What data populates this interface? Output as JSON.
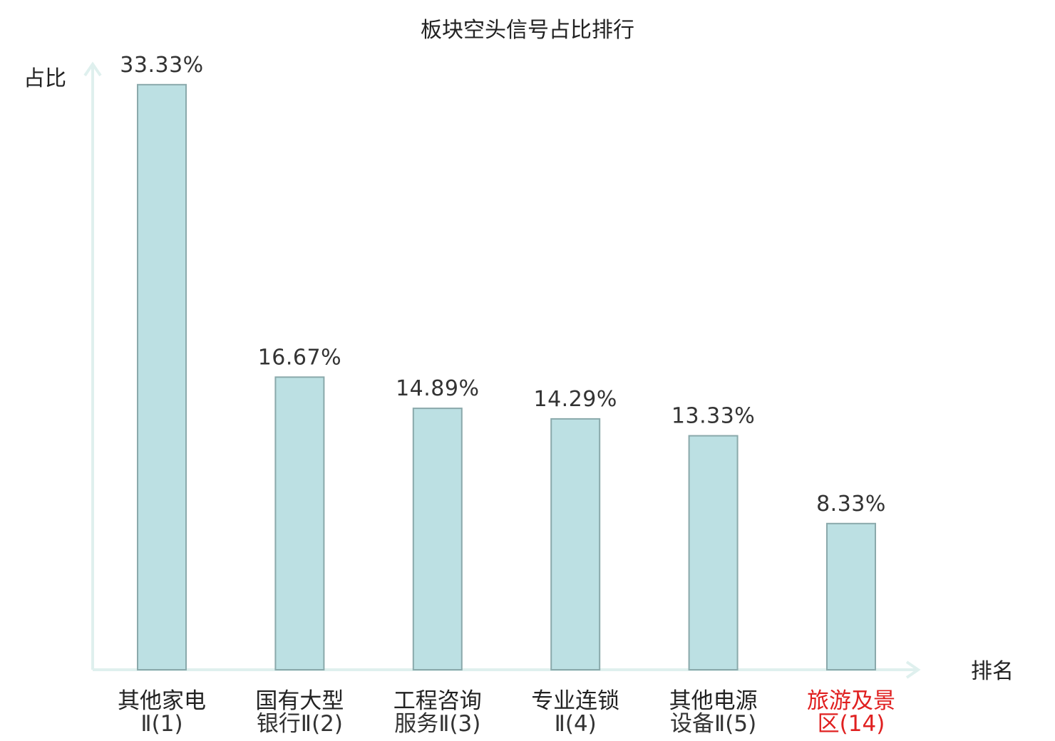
{
  "chart_data": {
    "type": "bar",
    "title": "板块空头信号占比排行",
    "ylabel": "占比",
    "xlabel": "排名",
    "ylim": [
      0,
      34.5
    ],
    "categories": [
      [
        "其他家电",
        "Ⅱ(1)"
      ],
      [
        "国有大型",
        "银行Ⅱ(2)"
      ],
      [
        "工程咨询",
        "服务Ⅱ(3)"
      ],
      [
        "专业连锁",
        "Ⅱ(4)"
      ],
      [
        "其他电源",
        "设备Ⅱ(5)"
      ],
      [
        "旅游及景",
        "区(14)"
      ]
    ],
    "values": [
      33.33,
      16.67,
      14.89,
      14.29,
      13.33,
      8.33
    ],
    "value_labels": [
      "33.33%",
      "16.67%",
      "14.89%",
      "14.29%",
      "13.33%",
      "8.33%"
    ],
    "highlight_index": 5,
    "grid": false,
    "legend": "none",
    "colors": {
      "bar_fill": "#bce0e3",
      "bar_stroke": "#8aa9ab",
      "axis": "#dff0ee",
      "highlight": "#e02020",
      "text": "#222222"
    }
  }
}
